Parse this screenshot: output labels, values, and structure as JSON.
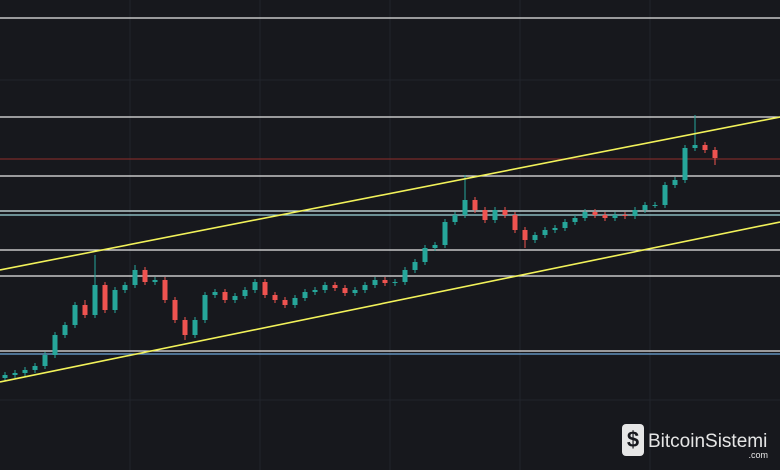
{
  "chart_data": {
    "type": "candlestick",
    "xlim": [
      -0.5,
      77.5
    ],
    "ylim": [
      0,
      470
    ],
    "up_color": "#26a69a",
    "down_color": "#ef5350",
    "open": [
      92,
      95,
      97,
      100,
      104,
      115,
      135,
      145,
      165,
      155,
      185,
      160,
      180,
      185,
      200,
      188,
      190,
      170,
      150,
      135,
      150,
      175,
      178,
      170,
      174,
      180,
      188,
      175,
      170,
      165,
      172,
      178,
      180,
      185,
      182,
      177,
      180,
      185,
      190,
      187,
      188,
      200,
      208,
      222,
      225,
      248,
      255,
      270,
      260,
      250,
      260,
      255,
      240,
      230,
      235,
      240,
      242,
      248,
      252,
      258,
      255,
      252,
      255,
      254,
      260,
      265,
      265,
      285,
      290,
      322,
      325,
      320
    ],
    "high": [
      98,
      100,
      103,
      107,
      118,
      138,
      148,
      168,
      170,
      215,
      188,
      183,
      188,
      205,
      203,
      193,
      193,
      173,
      153,
      153,
      178,
      181,
      181,
      177,
      183,
      191,
      191,
      178,
      173,
      175,
      181,
      183,
      188,
      188,
      185,
      183,
      188,
      193,
      193,
      191,
      203,
      211,
      225,
      228,
      251,
      258,
      295,
      273,
      263,
      263,
      263,
      258,
      243,
      238,
      243,
      245,
      251,
      255,
      261,
      261,
      258,
      258,
      258,
      263,
      268,
      268,
      288,
      293,
      325,
      355,
      328,
      323
    ],
    "low": [
      89,
      92,
      94,
      97,
      101,
      112,
      132,
      142,
      152,
      152,
      157,
      157,
      177,
      182,
      185,
      185,
      167,
      147,
      130,
      132,
      147,
      172,
      167,
      167,
      171,
      177,
      172,
      167,
      162,
      162,
      169,
      175,
      177,
      179,
      174,
      174,
      177,
      182,
      184,
      184,
      185,
      197,
      205,
      219,
      222,
      245,
      252,
      257,
      247,
      247,
      252,
      237,
      222,
      227,
      232,
      237,
      239,
      245,
      249,
      252,
      249,
      249,
      251,
      251,
      257,
      262,
      262,
      282,
      287,
      319,
      317,
      305
    ],
    "close": [
      95,
      97,
      100,
      104,
      115,
      135,
      145,
      165,
      155,
      185,
      160,
      180,
      185,
      200,
      188,
      190,
      170,
      150,
      135,
      150,
      175,
      178,
      170,
      174,
      180,
      188,
      175,
      170,
      165,
      172,
      178,
      180,
      185,
      182,
      177,
      180,
      185,
      190,
      187,
      188,
      200,
      208,
      222,
      225,
      248,
      255,
      270,
      260,
      250,
      260,
      255,
      240,
      230,
      235,
      240,
      242,
      248,
      252,
      258,
      255,
      252,
      255,
      254,
      260,
      265,
      265,
      285,
      290,
      322,
      325,
      320,
      312
    ],
    "levels": [
      {
        "value": 452,
        "color": "#e8e8e8"
      },
      {
        "value": 353,
        "color": "#e8e8e8"
      },
      {
        "value": 311,
        "color": "#7a2a2a"
      },
      {
        "value": 294,
        "color": "#e8e8e8"
      },
      {
        "value": 259,
        "color": "#d8eef0"
      },
      {
        "value": 255,
        "color": "#9fd6dc"
      },
      {
        "value": 220,
        "color": "#e8e8e8"
      },
      {
        "value": 194,
        "color": "#e8e8e8"
      },
      {
        "value": 119,
        "color": "#e8e8e8"
      },
      {
        "value": 116,
        "color": "#6fa8dc"
      }
    ],
    "trendlines": [
      {
        "x": [
          -0.5,
          77.5
        ],
        "y": [
          200,
          353
        ],
        "color": "#f2f25a"
      },
      {
        "x": [
          -0.5,
          77.5
        ],
        "y": [
          88,
          248
        ],
        "color": "#f2f25a"
      }
    ],
    "watermark": {
      "name": "BitcoinSistemi",
      "domain": ".com"
    }
  }
}
